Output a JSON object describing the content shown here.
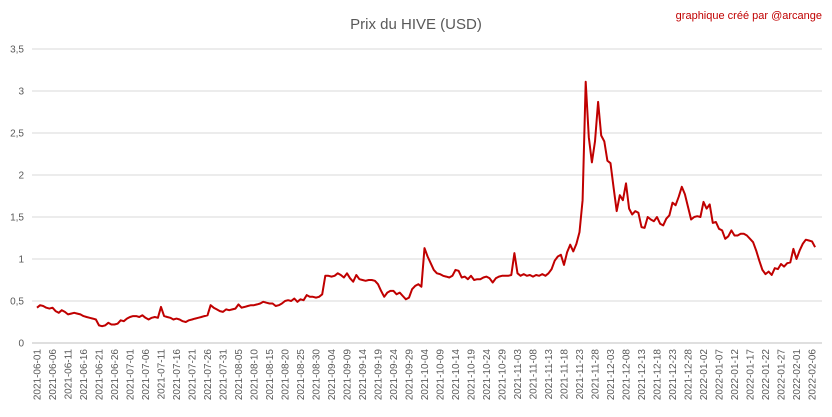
{
  "chart_data": {
    "type": "line",
    "title": "Prix du HIVE (USD)",
    "annotation": "graphique créé par @arcange",
    "grid": true,
    "ylim": [
      0,
      3.5
    ],
    "yticks": [
      0,
      {
        "value": 0.5,
        "label": "0,5"
      },
      1,
      {
        "value": 1.5,
        "label": "1,5"
      },
      2,
      {
        "value": 2.5,
        "label": "2,5"
      },
      3,
      {
        "value": 3.5,
        "label": "3,5"
      }
    ],
    "categories": [
      "2021-06-01",
      null,
      null,
      null,
      null,
      "2021-06-06",
      null,
      null,
      null,
      null,
      "2021-06-11",
      null,
      null,
      null,
      null,
      "2021-06-16",
      null,
      null,
      null,
      null,
      "2021-06-21",
      null,
      null,
      null,
      null,
      "2021-06-26",
      null,
      null,
      null,
      null,
      "2021-07-01",
      null,
      null,
      null,
      null,
      "2021-07-06",
      null,
      null,
      null,
      null,
      "2021-07-11",
      null,
      null,
      null,
      null,
      "2021-07-16",
      null,
      null,
      null,
      null,
      "2021-07-21",
      null,
      null,
      null,
      null,
      "2021-07-26",
      null,
      null,
      null,
      null,
      "2021-07-31",
      null,
      null,
      null,
      null,
      "2021-08-05",
      null,
      null,
      null,
      null,
      "2021-08-10",
      null,
      null,
      null,
      null,
      "2021-08-15",
      null,
      null,
      null,
      null,
      "2021-08-20",
      null,
      null,
      null,
      null,
      "2021-08-25",
      null,
      null,
      null,
      null,
      "2021-08-30",
      null,
      null,
      null,
      null,
      "2021-09-04",
      null,
      null,
      null,
      null,
      "2021-09-09",
      null,
      null,
      null,
      null,
      "2021-09-14",
      null,
      null,
      null,
      null,
      "2021-09-19",
      null,
      null,
      null,
      null,
      "2021-09-24",
      null,
      null,
      null,
      null,
      "2021-09-29",
      null,
      null,
      null,
      null,
      "2021-10-04",
      null,
      null,
      null,
      null,
      "2021-10-09",
      null,
      null,
      null,
      null,
      "2021-10-14",
      null,
      null,
      null,
      null,
      "2021-10-19",
      null,
      null,
      null,
      null,
      "2021-10-24",
      null,
      null,
      null,
      null,
      "2021-10-29",
      null,
      null,
      null,
      null,
      "2021-11-03",
      null,
      null,
      null,
      null,
      "2021-11-08",
      null,
      null,
      null,
      null,
      "2021-11-13",
      null,
      null,
      null,
      null,
      "2021-11-18",
      null,
      null,
      null,
      null,
      "2021-11-23",
      null,
      null,
      null,
      null,
      "2021-11-28",
      null,
      null,
      null,
      null,
      "2021-12-03",
      null,
      null,
      null,
      null,
      "2021-12-08",
      null,
      null,
      null,
      null,
      "2021-12-13",
      null,
      null,
      null,
      null,
      "2021-12-18",
      null,
      null,
      null,
      null,
      "2021-12-23",
      null,
      null,
      null,
      null,
      "2021-12-28",
      null,
      null,
      null,
      null,
      "2022-01-02",
      null,
      null,
      null,
      null,
      "2022-01-07",
      null,
      null,
      null,
      null,
      "2022-01-12",
      null,
      null,
      null,
      null,
      "2022-01-17",
      null,
      null,
      null,
      null,
      "2022-01-22",
      null,
      null,
      null,
      null,
      "2022-01-27",
      null,
      null,
      null,
      null,
      "2022-02-01",
      null,
      null,
      null,
      null,
      "2022-02-06",
      null
    ],
    "series": [
      {
        "color": "#c00000",
        "values": [
          0.42,
          0.45,
          0.44,
          0.42,
          0.41,
          0.42,
          0.38,
          0.36,
          0.39,
          0.37,
          0.34,
          0.35,
          0.36,
          0.35,
          0.34,
          0.32,
          0.31,
          0.3,
          0.29,
          0.28,
          0.21,
          0.2,
          0.21,
          0.24,
          0.22,
          0.22,
          0.23,
          0.27,
          0.26,
          0.29,
          0.31,
          0.32,
          0.32,
          0.31,
          0.33,
          0.3,
          0.28,
          0.3,
          0.31,
          0.3,
          0.43,
          0.32,
          0.31,
          0.3,
          0.28,
          0.29,
          0.28,
          0.26,
          0.25,
          0.27,
          0.28,
          0.29,
          0.3,
          0.31,
          0.32,
          0.33,
          0.45,
          0.42,
          0.4,
          0.38,
          0.37,
          0.4,
          0.39,
          0.4,
          0.41,
          0.46,
          0.42,
          0.43,
          0.44,
          0.45,
          0.45,
          0.46,
          0.47,
          0.49,
          0.48,
          0.47,
          0.47,
          0.44,
          0.45,
          0.47,
          0.5,
          0.51,
          0.5,
          0.53,
          0.49,
          0.52,
          0.51,
          0.57,
          0.55,
          0.55,
          0.54,
          0.55,
          0.58,
          0.8,
          0.8,
          0.79,
          0.8,
          0.83,
          0.81,
          0.78,
          0.83,
          0.77,
          0.73,
          0.81,
          0.76,
          0.75,
          0.74,
          0.75,
          0.75,
          0.74,
          0.7,
          0.62,
          0.55,
          0.6,
          0.62,
          0.62,
          0.58,
          0.6,
          0.56,
          0.52,
          0.54,
          0.64,
          0.68,
          0.7,
          0.67,
          1.13,
          1.03,
          0.95,
          0.87,
          0.83,
          0.82,
          0.8,
          0.79,
          0.78,
          0.8,
          0.87,
          0.86,
          0.78,
          0.79,
          0.76,
          0.8,
          0.75,
          0.76,
          0.76,
          0.78,
          0.79,
          0.77,
          0.72,
          0.77,
          0.79,
          0.8,
          0.8,
          0.8,
          0.81,
          1.07,
          0.83,
          0.8,
          0.82,
          0.8,
          0.81,
          0.79,
          0.81,
          0.8,
          0.82,
          0.8,
          0.83,
          0.88,
          0.98,
          1.03,
          1.05,
          0.93,
          1.08,
          1.17,
          1.09,
          1.18,
          1.32,
          1.7,
          3.11,
          2.45,
          2.15,
          2.4,
          2.87,
          2.47,
          2.4,
          2.17,
          2.14,
          1.85,
          1.57,
          1.76,
          1.7,
          1.9,
          1.6,
          1.53,
          1.57,
          1.55,
          1.38,
          1.37,
          1.5,
          1.47,
          1.45,
          1.5,
          1.42,
          1.4,
          1.48,
          1.52,
          1.67,
          1.64,
          1.74,
          1.86,
          1.77,
          1.62,
          1.47,
          1.5,
          1.51,
          1.5,
          1.68,
          1.6,
          1.65,
          1.43,
          1.44,
          1.36,
          1.34,
          1.24,
          1.27,
          1.34,
          1.28,
          1.28,
          1.3,
          1.3,
          1.28,
          1.24,
          1.2,
          1.1,
          0.98,
          0.87,
          0.82,
          0.85,
          0.81,
          0.89,
          0.88,
          0.94,
          0.91,
          0.95,
          0.96,
          1.12,
          1.0,
          1.1,
          1.18,
          1.23,
          1.22,
          1.21,
          1.14
        ]
      }
    ]
  }
}
